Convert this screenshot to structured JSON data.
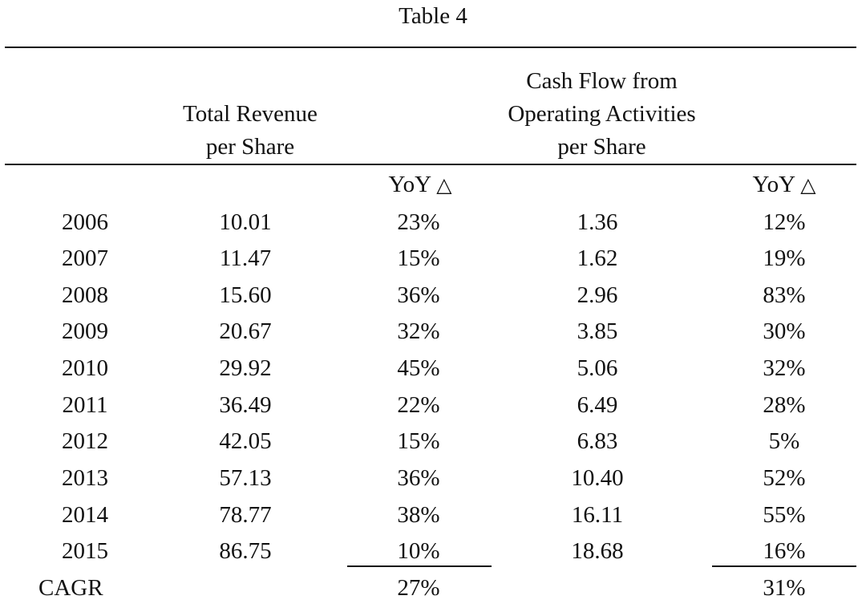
{
  "title": "Table 4",
  "headers": {
    "revenue": [
      "Total Revenue",
      "per Share"
    ],
    "cashflow": [
      "Cash Flow from",
      "Operating Activities",
      "per Share"
    ],
    "yoy_label": "YoY",
    "delta_symbol": "△"
  },
  "rows": [
    {
      "year": "2006",
      "revenue": "10.01",
      "revenue_yoy": "23%",
      "cashflow": "1.36",
      "cashflow_yoy": "12%"
    },
    {
      "year": "2007",
      "revenue": "11.47",
      "revenue_yoy": "15%",
      "cashflow": "1.62",
      "cashflow_yoy": "19%"
    },
    {
      "year": "2008",
      "revenue": "15.60",
      "revenue_yoy": "36%",
      "cashflow": "2.96",
      "cashflow_yoy": "83%"
    },
    {
      "year": "2009",
      "revenue": "20.67",
      "revenue_yoy": "32%",
      "cashflow": "3.85",
      "cashflow_yoy": "30%"
    },
    {
      "year": "2010",
      "revenue": "29.92",
      "revenue_yoy": "45%",
      "cashflow": "5.06",
      "cashflow_yoy": "32%"
    },
    {
      "year": "2011",
      "revenue": "36.49",
      "revenue_yoy": "22%",
      "cashflow": "6.49",
      "cashflow_yoy": "28%"
    },
    {
      "year": "2012",
      "revenue": "42.05",
      "revenue_yoy": "15%",
      "cashflow": "6.83",
      "cashflow_yoy": "5%"
    },
    {
      "year": "2013",
      "revenue": "57.13",
      "revenue_yoy": "36%",
      "cashflow": "10.40",
      "cashflow_yoy": "52%"
    },
    {
      "year": "2014",
      "revenue": "78.77",
      "revenue_yoy": "38%",
      "cashflow": "16.11",
      "cashflow_yoy": "55%"
    },
    {
      "year": "2015",
      "revenue": "86.75",
      "revenue_yoy": "10%",
      "cashflow": "18.68",
      "cashflow_yoy": "16%"
    }
  ],
  "cagr": {
    "label": "CAGR",
    "revenue_yoy": "27%",
    "cashflow_yoy": "31%"
  }
}
